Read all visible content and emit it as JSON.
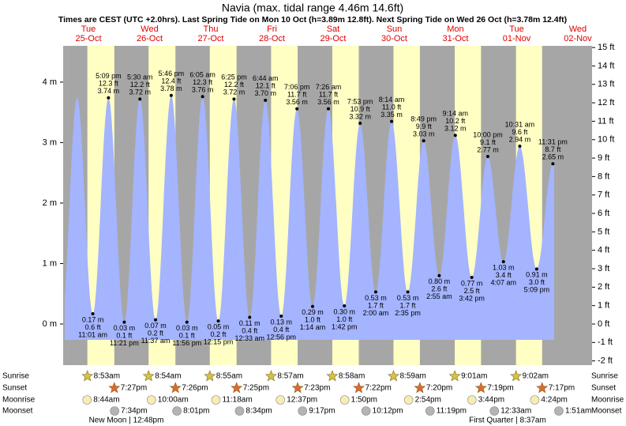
{
  "chart_data": {
    "type": "tide",
    "title": "Navia (max. tidal range 4.46m 14.6ft)",
    "subtitle": "Times are CEST (UTC +2.0hrs). Last Spring Tide on Mon 10 Oct (h=3.89m 12.8ft). Next Spring Tide on Wed 26 Oct (h=3.78m 12.4ft)",
    "days": [
      {
        "name": "Tue",
        "date": "25-Oct"
      },
      {
        "name": "Wed",
        "date": "26-Oct"
      },
      {
        "name": "Thu",
        "date": "27-Oct"
      },
      {
        "name": "Fri",
        "date": "28-Oct"
      },
      {
        "name": "Sat",
        "date": "29-Oct"
      },
      {
        "name": "Sun",
        "date": "30-Oct"
      },
      {
        "name": "Mon",
        "date": "31-Oct"
      },
      {
        "name": "Tue",
        "date": "01-Nov"
      },
      {
        "name": "Wed",
        "date": "02-Nov"
      }
    ],
    "x": [
      "11:01 am",
      "5:09 pm",
      "11:21 pm",
      "5:30 am",
      "11:37 am",
      "5:46 pm",
      "11:56 pm",
      "6:05 am",
      "12:15 pm",
      "6:25 pm",
      "12:33 am",
      "6:44 am",
      "12:56 pm",
      "7:06 pm",
      "1:14 am",
      "7:26 am",
      "1:42 pm",
      "7:53 pm",
      "2:00 am",
      "8:14 am",
      "2:35 pm",
      "8:49 pm",
      "2:55 am",
      "9:14 am",
      "3:42 pm",
      "10:00 pm",
      "4:07 am",
      "10:31 am",
      "5:09 pm",
      "11:31 pm"
    ],
    "values": [
      0.17,
      3.74,
      0.03,
      3.72,
      0.07,
      3.78,
      0.03,
      3.76,
      0.05,
      3.72,
      0.11,
      3.7,
      0.13,
      3.56,
      0.29,
      3.56,
      0.3,
      3.32,
      0.53,
      3.35,
      0.53,
      3.03,
      0.8,
      3.12,
      0.77,
      2.77,
      1.03,
      2.94,
      0.91,
      2.65
    ],
    "value_labels": [
      "0.17 m",
      "3.74 m",
      "0.03 m",
      "3.72 m",
      "0.07 m",
      "3.78 m",
      "0.03 m",
      "3.76 m",
      "0.05 m",
      "3.72 m",
      "0.11 m",
      "3.70 m",
      "0.13 m",
      "3.56 m",
      "0.29 m",
      "3.56 m",
      "0.30 m",
      "3.32 m",
      "0.53 m",
      "3.35 m",
      "0.53 m",
      "3.03 m",
      "0.80 m",
      "3.12 m",
      "0.77 m",
      "2.77 m",
      "1.03 m",
      "2.94 m",
      "0.91 m",
      "2.65 m"
    ],
    "values_ft": [
      0.6,
      12.3,
      0.1,
      12.2,
      0.2,
      12.4,
      0.1,
      12.3,
      0.2,
      12.2,
      0.4,
      12.1,
      0.4,
      11.7,
      1.0,
      11.7,
      1.0,
      10.9,
      1.7,
      11.0,
      1.7,
      9.9,
      2.6,
      10.2,
      2.5,
      9.1,
      3.4,
      9.6,
      3.0,
      8.7
    ],
    "value_labels_ft": [
      "0.6 ft",
      "12.3 ft",
      "0.1 ft",
      "12.2 ft",
      "0.2 ft",
      "12.4 ft",
      "0.1 ft",
      "12.3 ft",
      "0.2 ft",
      "12.2 ft",
      "0.4 ft",
      "12.1 ft",
      "0.4 ft",
      "11.7 ft",
      "1.0 ft",
      "11.7 ft",
      "1.0 ft",
      "10.9 ft",
      "1.7 ft",
      "11.0 ft",
      "1.7 ft",
      "9.9 ft",
      "2.6 ft",
      "10.2 ft",
      "2.5 ft",
      "9.1 ft",
      "3.4 ft",
      "9.6 ft",
      "3.0 ft",
      "8.7 ft"
    ],
    "ylim": [
      -0.68,
      4.6
    ],
    "yticks": [
      {
        "value": 0,
        "label": "0 m"
      },
      {
        "value": 1,
        "label": "1 m"
      },
      {
        "value": 2,
        "label": "2 m"
      },
      {
        "value": 3,
        "label": "3 m"
      },
      {
        "value": 4,
        "label": "4 m"
      }
    ],
    "y2lim": [
      -2.23,
      15.09
    ],
    "y2ticks": [
      {
        "value": -2,
        "label": "-2 ft"
      },
      {
        "value": -1,
        "label": "-1 ft"
      },
      {
        "value": 0,
        "label": "0 ft"
      },
      {
        "value": 1,
        "label": "1 ft"
      },
      {
        "value": 2,
        "label": "2 ft"
      },
      {
        "value": 3,
        "label": "3 ft"
      },
      {
        "value": 4,
        "label": "4 ft"
      },
      {
        "value": 5,
        "label": "5 ft"
      },
      {
        "value": 6,
        "label": "6 ft"
      },
      {
        "value": 7,
        "label": "7 ft"
      },
      {
        "value": 8,
        "label": "8 ft"
      },
      {
        "value": 9,
        "label": "9 ft"
      },
      {
        "value": 10,
        "label": "10 ft"
      },
      {
        "value": 11,
        "label": "11 ft"
      },
      {
        "value": 12,
        "label": "12 ft"
      },
      {
        "value": 13,
        "label": "13 ft"
      },
      {
        "value": 14,
        "label": "14 ft"
      },
      {
        "value": 15,
        "label": "15 ft"
      }
    ],
    "fill_color": "#a4b4ff",
    "day_color": "#ffffc4",
    "night_color": "#a6a6a6",
    "day_label_color": "#e00000",
    "rows": [
      {
        "name": "Sunrise",
        "shape": "star",
        "color": "#d8c23c",
        "times": [
          "8:53am",
          "8:54am",
          "8:55am",
          "8:57am",
          "8:58am",
          "8:59am",
          "9:01am",
          "9:02am"
        ]
      },
      {
        "name": "Sunset",
        "shape": "star",
        "color": "#e2682a",
        "times": [
          "7:27pm",
          "7:26pm",
          "7:25pm",
          "7:23pm",
          "7:22pm",
          "7:20pm",
          "7:19pm",
          "7:17pm"
        ]
      },
      {
        "name": "Moonrise",
        "shape": "circle",
        "color": "#f4eeb4",
        "times": [
          "8:44am",
          "10:00am",
          "11:18am",
          "12:37pm",
          "1:50pm",
          "2:54pm",
          "3:44pm",
          "4:24pm"
        ]
      },
      {
        "name": "Moonset",
        "shape": "circle",
        "color": "#b4b4b4",
        "times": [
          "7:34pm",
          "8:01pm",
          "8:34pm",
          "9:17pm",
          "10:12pm",
          "11:19pm",
          "12:33am",
          "1:51am"
        ]
      }
    ],
    "moon_phases": [
      "New Moon | 12:48pm",
      "First Quarter | 8:37am"
    ]
  }
}
